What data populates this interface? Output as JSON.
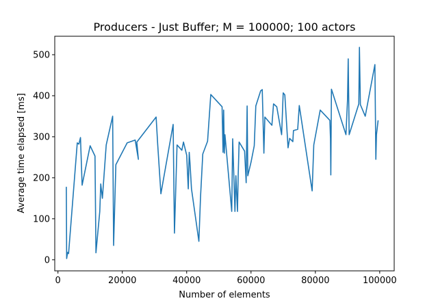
{
  "chart_data": {
    "type": "line",
    "title": "Producers - Just Buffer; M = 100000; 100 actors",
    "xlabel": "Number of elements",
    "ylabel": "Average time elapsed [ms]",
    "xlim": [
      -1000,
      104500
    ],
    "ylim": [
      -27,
      545
    ],
    "xticks": [
      0,
      20000,
      40000,
      60000,
      80000,
      100000
    ],
    "yticks": [
      0,
      100,
      200,
      300,
      400,
      500
    ],
    "grid": false,
    "line_color": "#1f77b4",
    "x": [
      2600,
      2700,
      3000,
      3300,
      6000,
      6500,
      7000,
      7500,
      10000,
      11500,
      11800,
      13000,
      13300,
      13800,
      15000,
      17000,
      17300,
      18000,
      21500,
      24000,
      25000,
      24500,
      30500,
      31000,
      32000,
      35800,
      36200,
      37000,
      38500,
      39000,
      40000,
      40500,
      40800,
      41000,
      41500,
      43800,
      44300,
      45000,
      46500,
      47500,
      51000,
      51300,
      51500,
      51700,
      51900,
      54000,
      54300,
      55000,
      55300,
      55800,
      56000,
      56300,
      58000,
      58500,
      58800,
      59000,
      60000,
      61000,
      61500,
      63000,
      63500,
      64000,
      64300,
      66500,
      67000,
      68000,
      69500,
      70000,
      70500,
      71500,
      72000,
      73000,
      73200,
      74500,
      75000,
      79000,
      79500,
      81500,
      84500,
      84700,
      84800,
      85000,
      89500,
      90000,
      90200,
      90500,
      93500,
      93700,
      94000,
      95500,
      98500,
      98800,
      99000,
      99500
    ],
    "y": [
      178,
      3,
      18,
      15,
      285,
      282,
      298,
      182,
      278,
      253,
      17,
      118,
      185,
      150,
      280,
      350,
      35,
      232,
      285,
      292,
      245,
      287,
      348,
      282,
      161,
      330,
      65,
      280,
      267,
      287,
      255,
      173,
      262,
      239,
      173,
      45,
      153,
      258,
      289,
      403,
      373,
      262,
      365,
      260,
      305,
      118,
      295,
      118,
      205,
      118,
      203,
      287,
      265,
      188,
      375,
      205,
      238,
      278,
      375,
      412,
      415,
      260,
      348,
      328,
      380,
      373,
      305,
      407,
      402,
      273,
      296,
      288,
      315,
      318,
      376,
      168,
      280,
      365,
      340,
      295,
      207,
      416,
      305,
      390,
      490,
      305,
      380,
      518,
      378,
      350,
      476,
      245,
      305,
      340
    ]
  }
}
